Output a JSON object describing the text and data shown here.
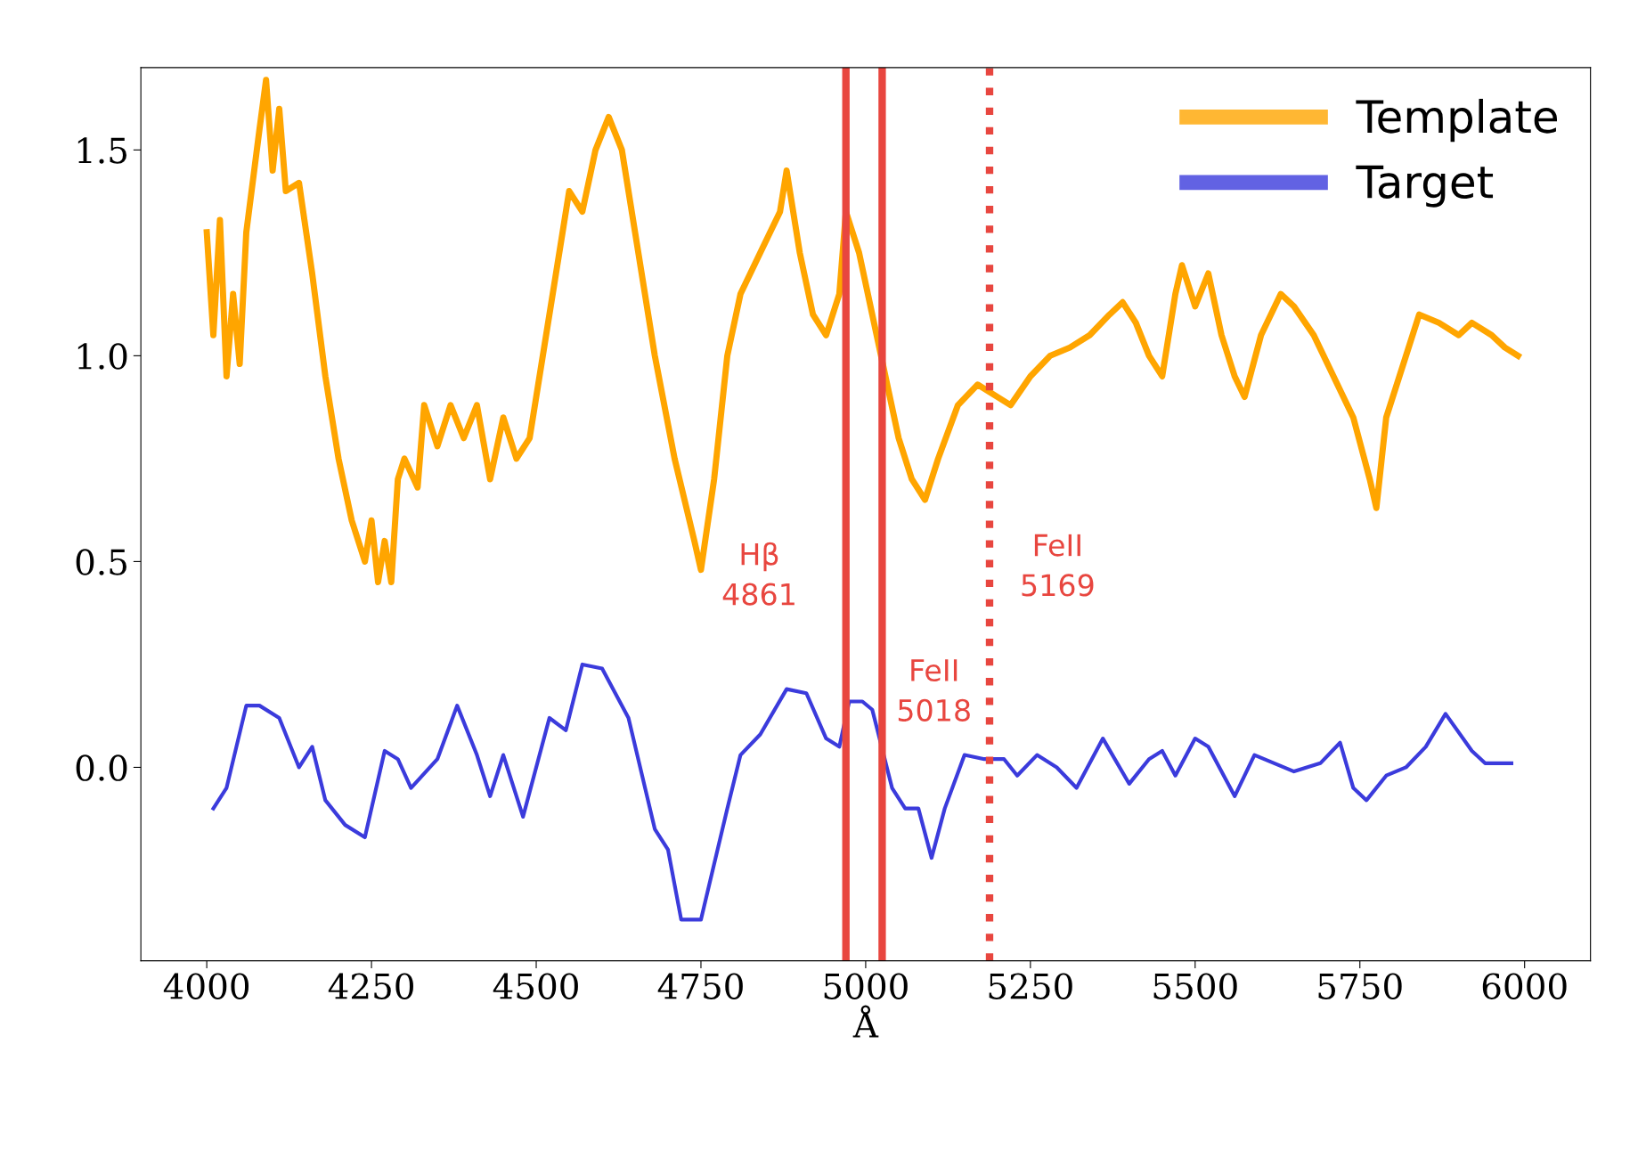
{
  "chart_data": {
    "type": "line",
    "xlabel": "Å",
    "xlim": [
      3900,
      6100
    ],
    "xticks": [
      4000,
      4250,
      4500,
      4750,
      5000,
      5250,
      5500,
      5750,
      6000
    ],
    "ylim": [
      -0.47,
      1.7
    ],
    "yticks": [
      {
        "value": 0,
        "label": "0.0"
      },
      0.5,
      {
        "value": 1,
        "label": "1.0"
      },
      1.5
    ],
    "grid": false,
    "legend": "top right",
    "marker": "none",
    "line_style": "solid",
    "series": [
      {
        "name": "Template",
        "color": "#ffa500",
        "x": [
          4000,
          4010,
          4020,
          4030,
          4040,
          4050,
          4060,
          4080,
          4090,
          4100,
          4110,
          4120,
          4140,
          4160,
          4180,
          4200,
          4220,
          4240,
          4250,
          4260,
          4270,
          4280,
          4290,
          4300,
          4320,
          4330,
          4350,
          4370,
          4390,
          4410,
          4430,
          4450,
          4470,
          4490,
          4510,
          4530,
          4550,
          4570,
          4590,
          4610,
          4630,
          4650,
          4680,
          4710,
          4740,
          4750,
          4770,
          4790,
          4810,
          4840,
          4870,
          4880,
          4900,
          4920,
          4940,
          4960,
          4970,
          4990,
          5010,
          5030,
          5050,
          5070,
          5090,
          5110,
          5140,
          5170,
          5200,
          5220,
          5250,
          5280,
          5310,
          5340,
          5370,
          5390,
          5410,
          5430,
          5450,
          5470,
          5480,
          5500,
          5520,
          5540,
          5560,
          5575,
          5600,
          5630,
          5650,
          5680,
          5710,
          5740,
          5765,
          5775,
          5790,
          5820,
          5840,
          5870,
          5900,
          5920,
          5950,
          5970,
          5990
        ],
        "values": [
          1.3,
          1.05,
          1.33,
          0.95,
          1.15,
          0.98,
          1.3,
          1.55,
          1.67,
          1.45,
          1.6,
          1.4,
          1.42,
          1.2,
          0.95,
          0.75,
          0.6,
          0.5,
          0.6,
          0.45,
          0.55,
          0.45,
          0.7,
          0.75,
          0.68,
          0.88,
          0.78,
          0.88,
          0.8,
          0.88,
          0.7,
          0.85,
          0.75,
          0.8,
          1.0,
          1.2,
          1.4,
          1.35,
          1.5,
          1.58,
          1.5,
          1.3,
          1.0,
          0.75,
          0.55,
          0.48,
          0.7,
          1.0,
          1.15,
          1.25,
          1.35,
          1.45,
          1.25,
          1.1,
          1.05,
          1.15,
          1.35,
          1.25,
          1.1,
          0.95,
          0.8,
          0.7,
          0.65,
          0.75,
          0.88,
          0.93,
          0.9,
          0.88,
          0.95,
          1.0,
          1.02,
          1.05,
          1.1,
          1.13,
          1.08,
          1.0,
          0.95,
          1.15,
          1.22,
          1.12,
          1.2,
          1.05,
          0.95,
          0.9,
          1.05,
          1.15,
          1.12,
          1.05,
          0.95,
          0.85,
          0.7,
          0.63,
          0.85,
          1.0,
          1.1,
          1.08,
          1.05,
          1.08,
          1.05,
          1.02,
          1.0
        ]
      },
      {
        "name": "Target",
        "color": "#3b3bdc",
        "x": [
          4010,
          4030,
          4060,
          4080,
          4110,
          4140,
          4160,
          4180,
          4210,
          4240,
          4270,
          4290,
          4310,
          4350,
          4380,
          4410,
          4430,
          4450,
          4480,
          4520,
          4545,
          4570,
          4600,
          4640,
          4680,
          4700,
          4720,
          4750,
          4790,
          4810,
          4840,
          4880,
          4910,
          4940,
          4960,
          4975,
          4995,
          5010,
          5040,
          5060,
          5080,
          5100,
          5120,
          5150,
          5180,
          5210,
          5230,
          5260,
          5290,
          5320,
          5360,
          5400,
          5430,
          5450,
          5470,
          5500,
          5520,
          5560,
          5590,
          5620,
          5650,
          5690,
          5720,
          5740,
          5760,
          5790,
          5820,
          5850,
          5880,
          5920,
          5940,
          5980
        ],
        "values": [
          -0.1,
          -0.05,
          0.15,
          0.15,
          0.12,
          0.0,
          0.05,
          -0.08,
          -0.14,
          -0.17,
          0.04,
          0.02,
          -0.05,
          0.02,
          0.15,
          0.03,
          -0.07,
          0.03,
          -0.12,
          0.12,
          0.09,
          0.25,
          0.24,
          0.12,
          -0.15,
          -0.2,
          -0.37,
          -0.37,
          -0.1,
          0.03,
          0.08,
          0.19,
          0.18,
          0.07,
          0.05,
          0.16,
          0.16,
          0.14,
          -0.05,
          -0.1,
          -0.1,
          -0.22,
          -0.1,
          0.03,
          0.02,
          0.02,
          -0.02,
          0.03,
          0.0,
          -0.05,
          0.07,
          -0.04,
          0.02,
          0.04,
          -0.02,
          0.07,
          0.05,
          -0.07,
          0.03,
          0.01,
          -0.01,
          0.01,
          0.06,
          -0.05,
          -0.08,
          -0.02,
          0.0,
          0.05,
          0.13,
          0.04,
          0.01,
          0.01
        ]
      }
    ],
    "ref_lines": [
      {
        "axis": "x",
        "value": 4970,
        "color": "#e8463f",
        "line_style": "solid",
        "label": "Hβ\n4861"
      },
      {
        "axis": "x",
        "value": 5025,
        "color": "#e8463f",
        "line_style": "solid",
        "label": "FeII\n5018"
      },
      {
        "axis": "x",
        "value": 5188,
        "color": "#e8463f",
        "line_style": "dotted",
        "label": "FeII\n5169"
      }
    ]
  }
}
